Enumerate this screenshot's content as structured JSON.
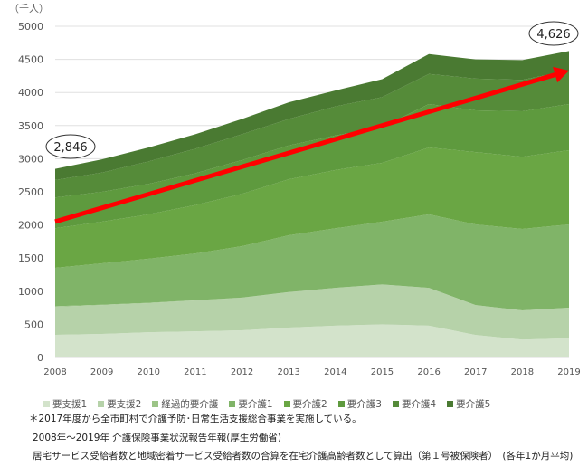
{
  "chart_data": {
    "type": "area",
    "stacked": true,
    "unit_label": "（千人）",
    "x": [
      2008,
      2009,
      2010,
      2011,
      2012,
      2013,
      2014,
      2015,
      2016,
      2017,
      2018,
      2019
    ],
    "ylim": [
      0,
      5000
    ],
    "yticks": [
      0,
      500,
      1000,
      1500,
      2000,
      2500,
      3000,
      3500,
      4000,
      4500,
      5000
    ],
    "grid": true,
    "legend_position": "bottom",
    "series": [
      {
        "name": "要支援1",
        "color": "#d3e3cb",
        "values": [
          341,
          355,
          380,
          395,
          410,
          450,
          480,
          500,
          480,
          340,
          270,
          290
        ]
      },
      {
        "name": "要支援2",
        "color": "#b6d2a9",
        "values": [
          424,
          435,
          440,
          465,
          490,
          535,
          570,
          600,
          570,
          450,
          440,
          460
        ]
      },
      {
        "name": "経過的要介護",
        "color": "#9cc487",
        "values": [
          8,
          6,
          5,
          4,
          3,
          2,
          1,
          1,
          1,
          1,
          1,
          1
        ]
      },
      {
        "name": "要介護1",
        "color": "#80b468",
        "values": [
          579,
          624,
          665,
          706,
          777,
          857,
          899,
          948,
          1109,
          1217,
          1229,
          1257
        ]
      },
      {
        "name": "要介護2",
        "color": "#6aa644",
        "values": [
          598,
          630,
          670,
          730,
          790,
          846,
          880,
          888,
          1010,
          1092,
          1090,
          1120
        ]
      },
      {
        "name": "要介護3",
        "color": "#5e9a3e",
        "values": [
          465,
          450,
          460,
          480,
          510,
          510,
          520,
          543,
          655,
          630,
          685,
          697
        ]
      },
      {
        "name": "要介護4",
        "color": "#558b39",
        "values": [
          265,
          290,
          340,
          370,
          390,
          400,
          440,
          450,
          455,
          480,
          475,
          505
        ]
      },
      {
        "name": "要介護5",
        "color": "#4a7a32",
        "values": [
          166,
          200,
          210,
          220,
          230,
          250,
          240,
          270,
          300,
          290,
          300,
          296
        ]
      }
    ],
    "trend_arrow": {
      "color": "#ff0000",
      "from": [
        2008,
        2050
      ],
      "to": [
        2019,
        4330
      ]
    },
    "annotations": [
      {
        "text": "2,846",
        "x": 2008,
        "y": 2846
      },
      {
        "text": "4,626",
        "x": 2019,
        "y": 4626
      }
    ]
  },
  "notes": {
    "footnote": "＊2017年度から全市町村で介護予防･日常生活支援総合事業を実施している。",
    "source": "2008年～2019年 介護保険事業状況報告年報(厚生労働省)",
    "method": "居宅サービス受給者数と地域密着サービス受給者数の合算を在宅介護高齢者数として算出（第１号被保険者）　(各年1か月平均)"
  }
}
